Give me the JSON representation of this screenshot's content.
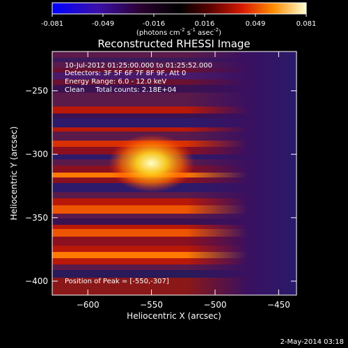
{
  "chart_data": {
    "type": "heatmap",
    "title": "Reconstructed RHESSI Image",
    "xlabel": "Heliocentric X (arcsec)",
    "ylabel": "Heliocentric Y (arcsec)",
    "xlim": [
      -628,
      -436
    ],
    "ylim": [
      -411,
      -219
    ],
    "xticks": [
      -600,
      -550,
      -500,
      -450
    ],
    "yticks": [
      -250,
      -300,
      -350,
      -400
    ],
    "colorbar": {
      "min": -0.081,
      "max": 0.081,
      "ticks": [
        "-0.081",
        "-0.049",
        "-0.016",
        "0.016",
        "0.049",
        "0.081"
      ],
      "unit_label": "(photons cm",
      "unit_sup1": "-2",
      "unit_mid": " s",
      "unit_sup2": "-1",
      "unit_mid2": " asec",
      "unit_sup3": "-2",
      "unit_end": ")",
      "colors": [
        "#0000ff",
        "#4b0082",
        "#1a001a",
        "#000000",
        "#3a0000",
        "#cc0000",
        "#ff6a00",
        "#ffd21a",
        "#ffffff"
      ]
    },
    "peak": {
      "x": -550,
      "y": -307,
      "label": "Position of Peak = [-550,-307]"
    },
    "annotations": [
      "10-Jul-2012 01:25:00.000 to 01:25:52.000",
      "Detectors: 3F 5F 6F 7F 8F 9F, Att 0",
      "Energy Range: 6.0 - 12.0 keV",
      "Clean     Total counts: 2.18E+04"
    ],
    "grid": false
  },
  "footer": {
    "timestamp": "2-May-2014 03:18"
  }
}
